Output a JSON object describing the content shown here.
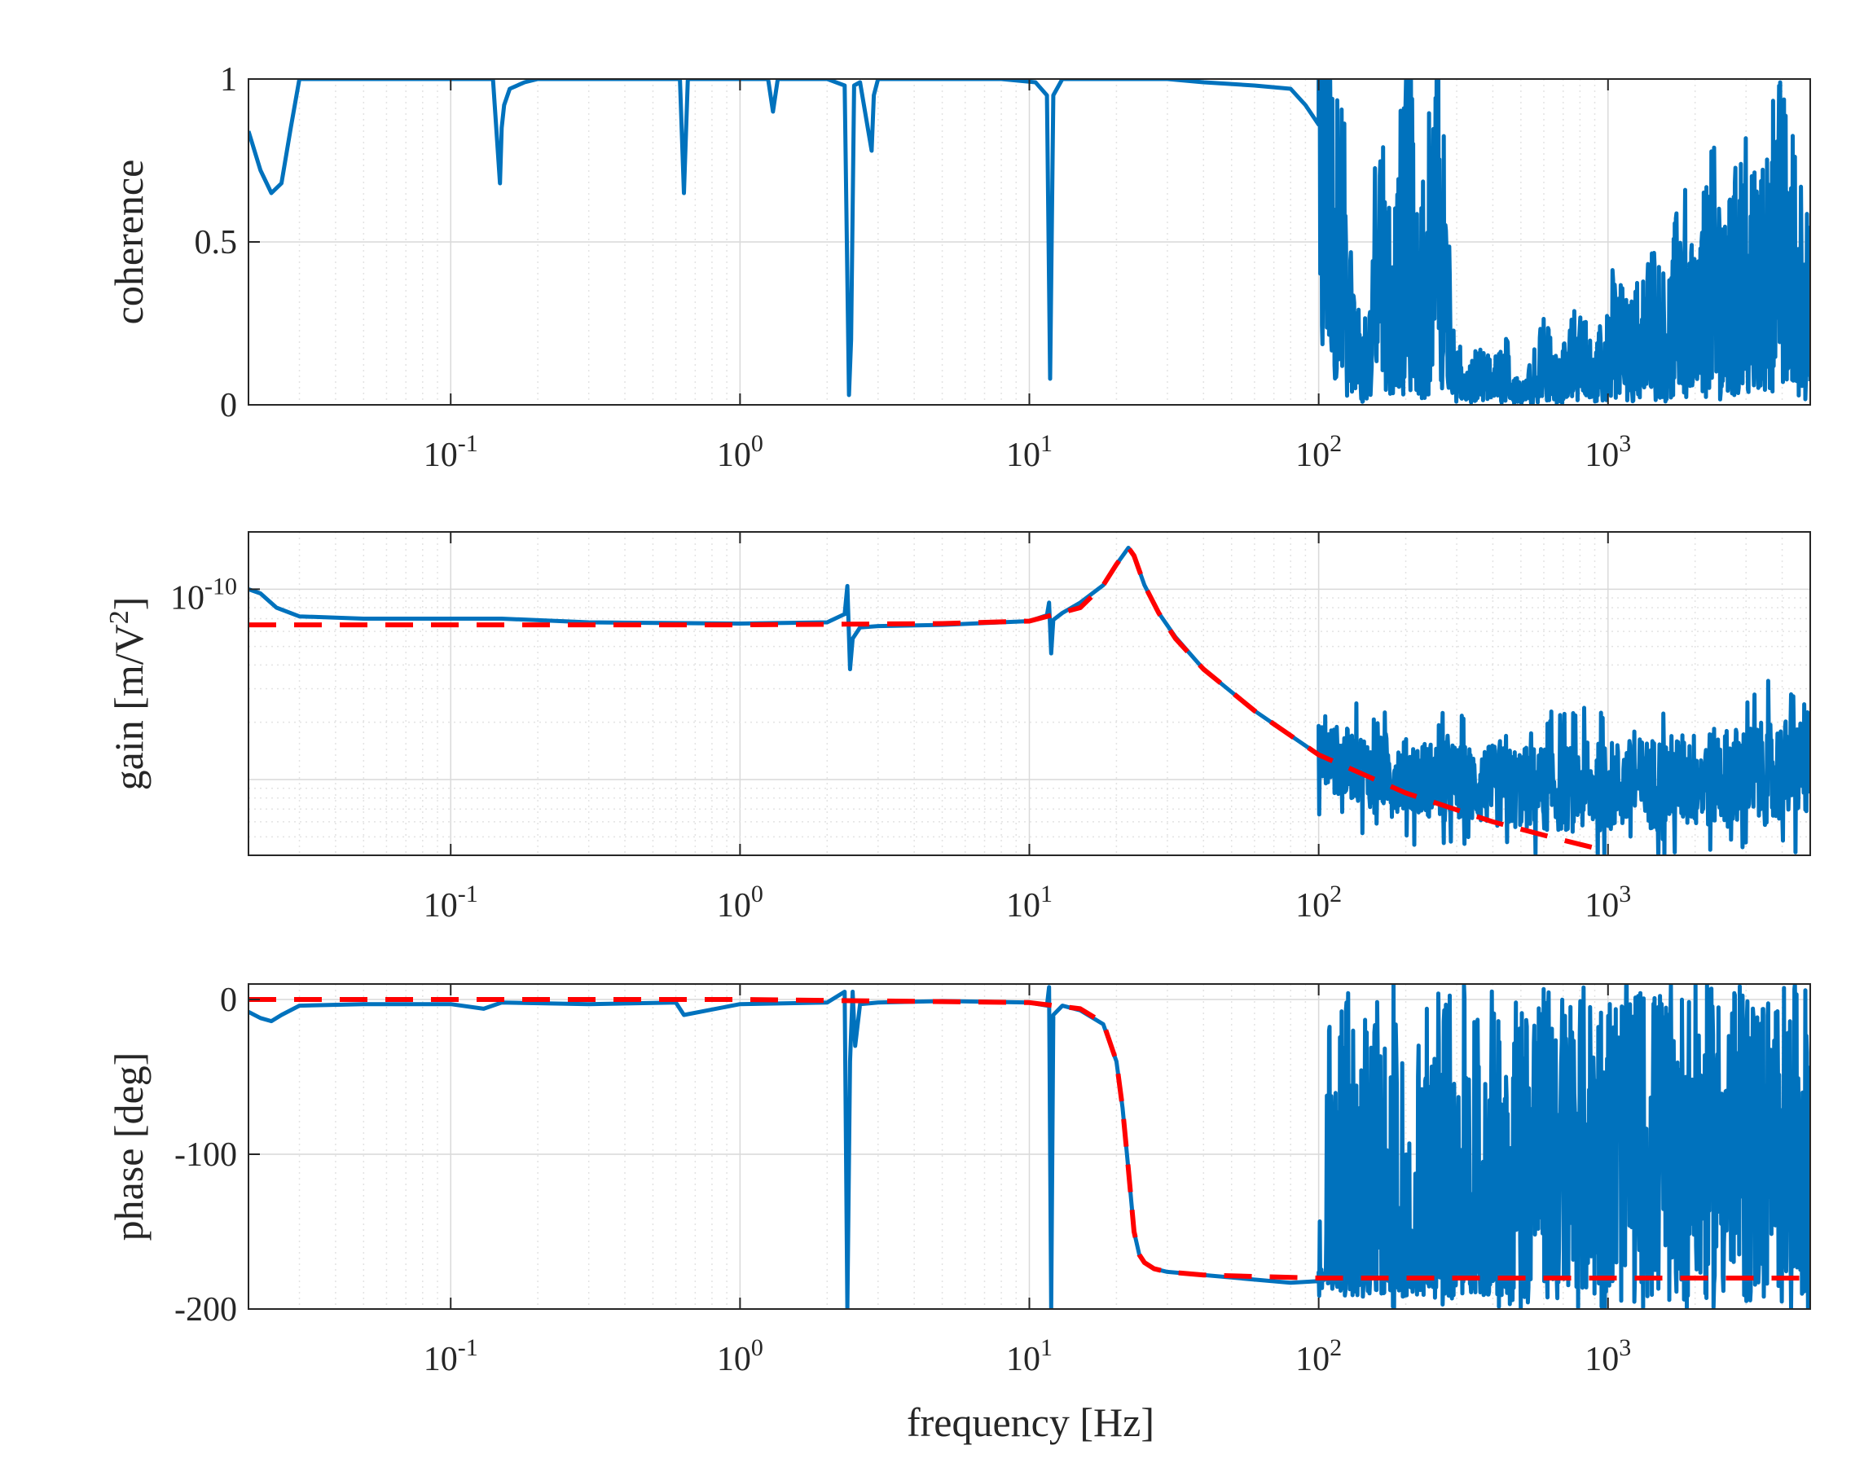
{
  "figure": {
    "xlabel": "frequency [Hz]",
    "colors": {
      "measured": "#0072BD",
      "model": "#FF0000",
      "grid": "#d9d9d9",
      "axes": "#262626"
    }
  },
  "chart_data": [
    {
      "type": "line",
      "ylabel": "coherence",
      "xscale": "log",
      "yscale": "linear",
      "xlim": [
        0.02,
        5000
      ],
      "ylim": [
        0,
        1
      ],
      "xticks": [
        0.1,
        1,
        10,
        100,
        1000
      ],
      "xtick_labels": [
        {
          "base": "10",
          "exp": "-1"
        },
        {
          "base": "10",
          "exp": "0"
        },
        {
          "base": "10",
          "exp": "1"
        },
        {
          "base": "10",
          "exp": "2"
        },
        {
          "base": "10",
          "exp": "3"
        }
      ],
      "yticks": [
        0,
        0.5,
        1
      ],
      "ytick_labels": [
        "0",
        "0.5",
        "1"
      ],
      "grid": true,
      "series": [
        {
          "color": "#0072BD",
          "style": "solid",
          "x": [
            0.02,
            0.022,
            0.024,
            0.026,
            0.028,
            0.03,
            0.035,
            0.05,
            0.08,
            0.14,
            0.148,
            0.15,
            0.153,
            0.16,
            0.18,
            0.2,
            0.3,
            0.5,
            0.62,
            0.64,
            0.66,
            0.8,
            1.0,
            1.25,
            1.3,
            1.35,
            1.6,
            2.0,
            2.3,
            2.38,
            2.42,
            2.48,
            2.6,
            2.85,
            2.9,
            3.0,
            3.2,
            5,
            8,
            10.5,
            11.5,
            11.8,
            12.1,
            13,
            16,
            20,
            30,
            40,
            60,
            80,
            90,
            100,
            110,
            120,
            130,
            140,
            150,
            160,
            180,
            200,
            230,
            260,
            280,
            300,
            320,
            350,
            400,
            450,
            500,
            600,
            700,
            800,
            900,
            1000,
            1200,
            1400,
            1600,
            1800,
            2000,
            2300,
            2600,
            3000,
            3400,
            3800,
            4200,
            4600,
            5000
          ],
          "y": [
            0.84,
            0.72,
            0.65,
            0.68,
            0.85,
            1.0,
            1.0,
            1.0,
            1.0,
            1.0,
            0.68,
            0.85,
            0.92,
            0.97,
            0.99,
            1.0,
            1.0,
            1.0,
            1.0,
            0.65,
            1.0,
            1.0,
            1.0,
            1.0,
            0.9,
            1.0,
            1.0,
            1.0,
            0.98,
            0.03,
            0.2,
            0.98,
            0.99,
            0.78,
            0.95,
            1.0,
            1.0,
            1.0,
            1.0,
            0.99,
            0.95,
            0.08,
            0.95,
            1.0,
            1.0,
            1.0,
            1.0,
            0.99,
            0.98,
            0.97,
            0.92,
            0.86,
            0.75,
            0.55,
            0.3,
            0.12,
            0.2,
            0.55,
            0.35,
            0.62,
            0.45,
            0.68,
            0.3,
            0.15,
            0.05,
            0.1,
            0.08,
            0.12,
            0.05,
            0.15,
            0.1,
            0.2,
            0.08,
            0.25,
            0.18,
            0.3,
            0.22,
            0.4,
            0.28,
            0.45,
            0.35,
            0.5,
            0.4,
            0.6,
            0.5,
            0.45,
            0.3
          ],
          "noise": {
            "from_x": 100,
            "fill_min": 0.0
          }
        }
      ]
    },
    {
      "type": "line",
      "ylabel": "gain [m/V",
      "ylabel_sup": "2",
      "ylabel_end": "]",
      "xscale": "log",
      "yscale": "log",
      "xlim": [
        0.02,
        5000
      ],
      "ylim": [
        4e-12,
        2e-10
      ],
      "xticks": [
        0.1,
        1,
        10,
        100,
        1000
      ],
      "xtick_labels": [
        {
          "base": "10",
          "exp": "-1"
        },
        {
          "base": "10",
          "exp": "0"
        },
        {
          "base": "10",
          "exp": "1"
        },
        {
          "base": "10",
          "exp": "2"
        },
        {
          "base": "10",
          "exp": "3"
        }
      ],
      "yticks": [
        1e-10
      ],
      "ytick_labels": [
        {
          "base": "10",
          "exp": "-10"
        }
      ],
      "grid": true,
      "series": [
        {
          "color": "#FF0000",
          "style": "dashed",
          "x": [
            0.02,
            0.1,
            1,
            5,
            10,
            15,
            18,
            20,
            22,
            23,
            25,
            28,
            32,
            40,
            60,
            100,
            200,
            400,
            700,
            1000
          ],
          "y": [
            6.5e-11,
            6.5e-11,
            6.5e-11,
            6.6e-11,
            6.8e-11,
            8e-11,
            1.05e-10,
            1.35e-10,
            1.65e-10,
            1.5e-10,
            1.05e-10,
            7.5e-11,
            5.5e-11,
            3.8e-11,
            2.3e-11,
            1.35e-11,
            8.5e-12,
            6e-12,
            4.8e-12,
            4.2e-12
          ]
        },
        {
          "color": "#0072BD",
          "style": "solid",
          "x": [
            0.02,
            0.022,
            0.025,
            0.03,
            0.05,
            0.1,
            0.15,
            0.3,
            1,
            2.0,
            2.3,
            2.35,
            2.4,
            2.45,
            2.6,
            3,
            5,
            10,
            11.5,
            11.7,
            11.9,
            12.1,
            13,
            15,
            18,
            20,
            22,
            23,
            25,
            28,
            32,
            40,
            60,
            100,
            130,
            150,
            200,
            300,
            500,
            800,
            1000,
            1500,
            2000,
            3000,
            4000,
            5000
          ],
          "y": [
            1e-10,
            9.5e-11,
            8e-11,
            7.2e-11,
            7e-11,
            7e-11,
            7e-11,
            6.7e-11,
            6.6e-11,
            6.7e-11,
            7.4e-11,
            1.04e-10,
            3.8e-11,
            5.5e-11,
            6.3e-11,
            6.4e-11,
            6.5e-11,
            6.8e-11,
            7.3e-11,
            8.5e-11,
            4.6e-11,
            6.9e-11,
            7.5e-11,
            8.5e-11,
            1.05e-10,
            1.35e-10,
            1.65e-10,
            1.5e-10,
            1.05e-10,
            7.5e-11,
            5.6e-11,
            3.8e-11,
            2.3e-11,
            1.35e-11,
            1.2e-11,
            1.1e-11,
            1.05e-11,
            9.5e-12,
            9e-12,
            9e-12,
            9.2e-12,
            9.6e-12,
            1e-11,
            1.05e-11,
            1.1e-11,
            1.2e-11
          ],
          "noise": {
            "from_x": 100,
            "fill_min": 4e-12
          }
        }
      ]
    },
    {
      "type": "line",
      "ylabel": "phase [deg]",
      "xscale": "log",
      "yscale": "linear",
      "xlim": [
        0.02,
        5000
      ],
      "ylim": [
        -200,
        10
      ],
      "xticks": [
        0.1,
        1,
        10,
        100,
        1000
      ],
      "xtick_labels": [
        {
          "base": "10",
          "exp": "-1"
        },
        {
          "base": "10",
          "exp": "0"
        },
        {
          "base": "10",
          "exp": "1"
        },
        {
          "base": "10",
          "exp": "2"
        },
        {
          "base": "10",
          "exp": "3"
        }
      ],
      "yticks": [
        -200,
        -100,
        0
      ],
      "ytick_labels": [
        "-200",
        "-100",
        "0"
      ],
      "grid": true,
      "series": [
        {
          "color": "#FF0000",
          "style": "dashed",
          "x": [
            0.02,
            1,
            10,
            15,
            18,
            20,
            21,
            22,
            23,
            24,
            25,
            27,
            30,
            40,
            60,
            100,
            1000,
            5000
          ],
          "y": [
            0,
            0,
            -2,
            -6,
            -15,
            -40,
            -70,
            -110,
            -150,
            -165,
            -170,
            -174,
            -176,
            -178,
            -179,
            -180,
            -180,
            -180
          ]
        },
        {
          "color": "#0072BD",
          "style": "solid",
          "x": [
            0.02,
            0.022,
            0.024,
            0.026,
            0.03,
            0.05,
            0.1,
            0.13,
            0.15,
            0.3,
            0.6,
            0.64,
            1,
            2.0,
            2.3,
            2.35,
            2.4,
            2.45,
            2.5,
            2.6,
            3,
            5,
            10,
            11.5,
            11.7,
            11.9,
            12.1,
            13,
            15,
            18,
            20,
            21,
            22,
            23,
            24,
            25,
            27,
            30,
            40,
            60,
            80,
            100
          ],
          "y": [
            -8,
            -12,
            -14,
            -10,
            -4,
            -3,
            -3,
            -6,
            -2,
            -3,
            -2,
            -10,
            -3,
            -2,
            5,
            -200,
            -40,
            5,
            -30,
            -3,
            -2,
            -1,
            -2,
            -4,
            8,
            -200,
            -10,
            -4,
            -7,
            -16,
            -40,
            -70,
            -110,
            -150,
            -165,
            -170,
            -174,
            -176,
            -178,
            -181,
            -183,
            -182
          ],
          "noise": {
            "from_x": 100,
            "fill_min": -200,
            "fill_max": 10
          }
        }
      ]
    }
  ]
}
